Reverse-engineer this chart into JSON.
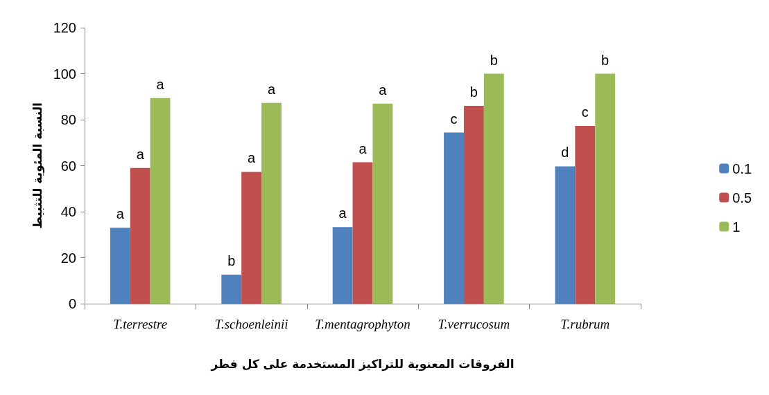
{
  "chart_data": {
    "type": "bar",
    "xlabel": "الفروقات المعنوية للتراكيز المستخدمة على كل فطر",
    "ylabel": "النسبة المئوية للتثبيط",
    "categories": [
      "T.terrestre",
      "T.schoenleinii",
      "T.mentagrophyton",
      "T.verrucosum",
      "T.rubrum"
    ],
    "series": [
      {
        "name": "0.1",
        "color": "#4f81bd",
        "values": [
          33,
          12.6,
          33.3,
          74.4,
          59.7
        ],
        "value_labels": [
          "a",
          "b",
          "a",
          "c",
          "d"
        ]
      },
      {
        "name": "0.5",
        "color": "#c0504d",
        "values": [
          59,
          57.3,
          61.5,
          86,
          77.3
        ],
        "value_labels": [
          "a",
          "a",
          "a",
          "b",
          "c"
        ]
      },
      {
        "name": "1",
        "color": "#9bbb59",
        "values": [
          89.4,
          87.3,
          87,
          100,
          100
        ],
        "value_labels": [
          "a",
          "a",
          "a",
          "b",
          "b"
        ]
      }
    ],
    "ylim": [
      0,
      120
    ],
    "yticks": [
      0,
      20,
      40,
      60,
      80,
      100,
      120
    ],
    "grid": false,
    "legend": "right"
  }
}
